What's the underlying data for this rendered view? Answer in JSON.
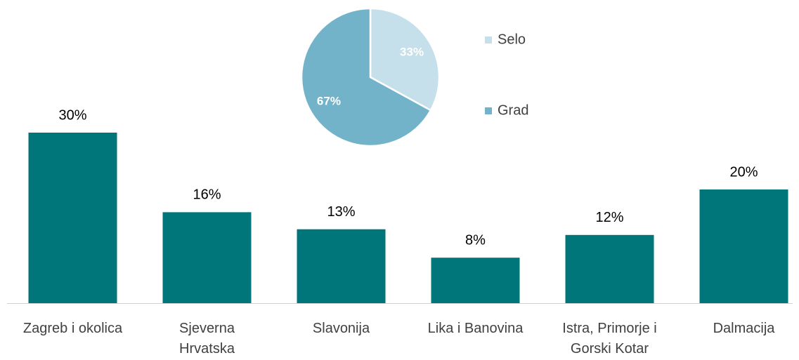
{
  "chart_data": [
    {
      "type": "bar",
      "categories": [
        "Zagreb i okolica",
        "Sjeverna\nHrvatska",
        "Slavonija",
        "Lika i Banovina",
        "Istra, Primorje i\nGorski Kotar",
        "Dalmacija"
      ],
      "values": [
        30,
        16,
        13,
        8,
        12,
        20
      ],
      "value_labels": [
        "30%",
        "16%",
        "13%",
        "8%",
        "12%",
        "20%"
      ],
      "color": "#00757a"
    },
    {
      "type": "pie",
      "categories": [
        "Selo",
        "Grad"
      ],
      "values": [
        33,
        67
      ],
      "value_labels": [
        "33%",
        "67%"
      ],
      "colors": [
        "#c5e0ea",
        "#72b3c9"
      ],
      "legend": "right"
    }
  ]
}
